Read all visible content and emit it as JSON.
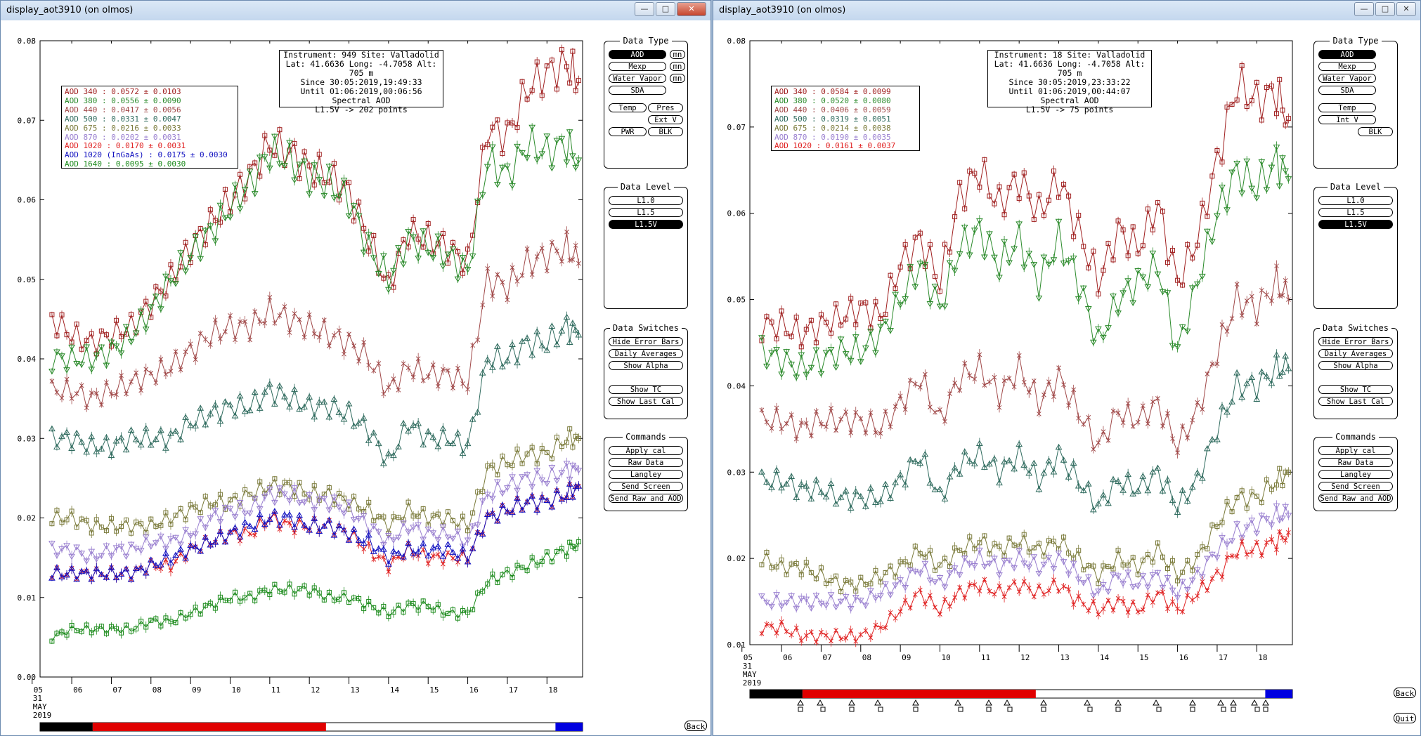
{
  "windows": [
    {
      "id": "left",
      "title": "display_aot3910 (on olmos)",
      "info_lines": [
        "Instrument: 949 Site: Valladolid",
        "Lat: 41.6636 Long: -4.7058 Alt: 705 m",
        "Since 30:05:2019,19:49:33",
        "Until 01:06:2019,00:06:56",
        "Spectral AOD",
        "L1.5V -> 202 points"
      ],
      "legend": [
        {
          "label": "AOD 340  : 0.0572 ± 0.0103",
          "color": "#a02020"
        },
        {
          "label": "AOD 380  : 0.0556 ± 0.0090",
          "color": "#2a8a2a"
        },
        {
          "label": "AOD 440  : 0.0417 ± 0.0056",
          "color": "#a04848"
        },
        {
          "label": "AOD 500  : 0.0331 ± 0.0047",
          "color": "#2f6b5e"
        },
        {
          "label": "AOD 675  : 0.0216 ± 0.0033",
          "color": "#7a7a3a"
        },
        {
          "label": "AOD 870  : 0.0202 ± 0.0031",
          "color": "#9a80d0"
        },
        {
          "label": "AOD 1020  : 0.0170 ± 0.0031",
          "color": "#e02020"
        },
        {
          "label": "AOD 1020 (InGaAs)  : 0.0175 ± 0.0030",
          "color": "#1010c0"
        },
        {
          "label": "AOD 1640  : 0.0095 ± 0.0030",
          "color": "#1a8a1a"
        }
      ]
    },
    {
      "id": "right",
      "title": "display_aot3910 (on olmos)",
      "info_lines": [
        "Instrument: 18 Site: Valladolid",
        "Lat: 41.6636 Long: -4.7058 Alt: 705 m",
        "Since 30:05:2019,23:33:22",
        "Until 01:06:2019,00:44:07",
        "Spectral AOD",
        "L1.5V -> 75 points"
      ],
      "legend": [
        {
          "label": "AOD 340  : 0.0584 ± 0.0099",
          "color": "#a02020"
        },
        {
          "label": "AOD 380  : 0.0520 ± 0.0080",
          "color": "#2a8a2a"
        },
        {
          "label": "AOD 440  : 0.0406 ± 0.0059",
          "color": "#a04848"
        },
        {
          "label": "AOD 500  : 0.0319 ± 0.0051",
          "color": "#2f6b5e"
        },
        {
          "label": "AOD 675  : 0.0214 ± 0.0038",
          "color": "#7a7a3a"
        },
        {
          "label": "AOD 870  : 0.0190 ± 0.0035",
          "color": "#9a80d0"
        },
        {
          "label": "AOD 1020  : 0.0161 ± 0.0037",
          "color": "#e02020"
        }
      ]
    }
  ],
  "panels": {
    "data_type": {
      "title": "Data Type",
      "aod": "AOD",
      "mexp": "Mexp",
      "water_vapor": "Water Vapor",
      "sda": "SDA",
      "temp": "Temp",
      "pres": "Pres",
      "ext_v": "Ext V",
      "pwr": "PWR",
      "blk": "BLK",
      "mn": "mn",
      "int_v": "Int V"
    },
    "data_level": {
      "title": "Data Level",
      "l10": "L1.0",
      "l15": "L1.5",
      "l15v": "L1.5V"
    },
    "data_switches": {
      "title": "Data Switches",
      "hide_error_bars": "Hide Error Bars",
      "daily_averages": "Daily Averages",
      "show_alpha": "Show Alpha",
      "show_tc": "Show TC",
      "show_last_cal": "Show Last Cal"
    },
    "commands": {
      "title": "Commands",
      "apply_cal": "Apply cal",
      "raw_data": "Raw Data",
      "langley": "Langley",
      "send_screen": "Send Screen",
      "send_raw_and_aod": "Send Raw and AOD"
    },
    "back": "Back",
    "quit": "Quit"
  },
  "chart_data": [
    {
      "type": "line",
      "ylim": [
        0,
        0.08
      ],
      "yticks": [
        "0.00",
        "0.01",
        "0.02",
        "0.03",
        "0.04",
        "0.05",
        "0.06",
        "0.07",
        "0.08"
      ],
      "xlim": [
        5.2,
        18.9
      ],
      "xticks": [
        "05",
        "06",
        "07",
        "08",
        "09",
        "10",
        "11",
        "12",
        "13",
        "14",
        "15",
        "16",
        "17",
        "18"
      ],
      "xsub": [
        "31",
        "MAY",
        "2019"
      ],
      "x": [
        5.5,
        6.0,
        6.5,
        7.0,
        7.5,
        8.0,
        8.5,
        9.0,
        9.5,
        10.0,
        10.5,
        11.0,
        11.5,
        12.0,
        12.5,
        13.0,
        13.5,
        14.0,
        14.5,
        15.0,
        15.5,
        16.0,
        16.5,
        17.0,
        17.5,
        18.0,
        18.5,
        18.8
      ],
      "series": [
        {
          "name": "AOD 340",
          "marker": "square",
          "color": "#a02020",
          "values": [
            0.045,
            0.043,
            0.042,
            0.043,
            0.044,
            0.047,
            0.05,
            0.054,
            0.057,
            0.06,
            0.063,
            0.067,
            0.066,
            0.064,
            0.063,
            0.061,
            0.055,
            0.049,
            0.056,
            0.055,
            0.054,
            0.052,
            0.069,
            0.068,
            0.074,
            0.076,
            0.077,
            0.075
          ]
        },
        {
          "name": "AOD 380",
          "marker": "triangle-down",
          "color": "#2a8a2a",
          "values": [
            0.04,
            0.04,
            0.04,
            0.041,
            0.043,
            0.046,
            0.05,
            0.053,
            0.056,
            0.059,
            0.062,
            0.066,
            0.065,
            0.063,
            0.062,
            0.06,
            0.054,
            0.05,
            0.055,
            0.054,
            0.053,
            0.051,
            0.065,
            0.063,
            0.067,
            0.066,
            0.067,
            0.065
          ]
        },
        {
          "name": "AOD 440",
          "marker": "x",
          "color": "#a04848",
          "values": [
            0.036,
            0.036,
            0.035,
            0.036,
            0.037,
            0.038,
            0.039,
            0.041,
            0.043,
            0.044,
            0.044,
            0.046,
            0.045,
            0.044,
            0.043,
            0.042,
            0.04,
            0.036,
            0.039,
            0.038,
            0.038,
            0.037,
            0.05,
            0.049,
            0.052,
            0.053,
            0.054,
            0.052
          ]
        },
        {
          "name": "AOD 500",
          "marker": "triangle",
          "color": "#2f6b5e",
          "values": [
            0.03,
            0.03,
            0.029,
            0.029,
            0.03,
            0.03,
            0.03,
            0.032,
            0.033,
            0.034,
            0.034,
            0.036,
            0.035,
            0.034,
            0.034,
            0.033,
            0.031,
            0.027,
            0.032,
            0.03,
            0.03,
            0.029,
            0.04,
            0.04,
            0.042,
            0.042,
            0.044,
            0.043
          ]
        },
        {
          "name": "AOD 675",
          "marker": "square",
          "color": "#7a7a3a",
          "values": [
            0.02,
            0.02,
            0.019,
            0.019,
            0.019,
            0.019,
            0.02,
            0.021,
            0.022,
            0.022,
            0.023,
            0.024,
            0.024,
            0.023,
            0.023,
            0.022,
            0.021,
            0.019,
            0.021,
            0.02,
            0.02,
            0.019,
            0.026,
            0.027,
            0.028,
            0.028,
            0.03,
            0.03
          ]
        },
        {
          "name": "AOD 870",
          "marker": "triangle-down",
          "color": "#9a80d0",
          "values": [
            0.016,
            0.016,
            0.015,
            0.016,
            0.016,
            0.017,
            0.017,
            0.018,
            0.02,
            0.021,
            0.021,
            0.023,
            0.023,
            0.022,
            0.022,
            0.021,
            0.019,
            0.017,
            0.019,
            0.018,
            0.018,
            0.017,
            0.023,
            0.024,
            0.025,
            0.025,
            0.026,
            0.026
          ]
        },
        {
          "name": "AOD 1020",
          "marker": "x",
          "color": "#e02020",
          "values": [
            0.013,
            0.013,
            0.013,
            0.013,
            0.013,
            0.014,
            0.014,
            0.016,
            0.017,
            0.018,
            0.018,
            0.02,
            0.019,
            0.019,
            0.019,
            0.018,
            0.016,
            0.014,
            0.016,
            0.015,
            0.015,
            0.015,
            0.02,
            0.021,
            0.022,
            0.022,
            0.023,
            0.024
          ]
        },
        {
          "name": "AOD 1020 (InGaAs)",
          "marker": "triangle",
          "color": "#1010c0",
          "values": [
            0.013,
            0.013,
            0.013,
            0.013,
            0.013,
            0.014,
            0.015,
            0.016,
            0.017,
            0.018,
            0.019,
            0.02,
            0.02,
            0.019,
            0.019,
            0.018,
            0.017,
            0.015,
            0.016,
            0.016,
            0.016,
            0.015,
            0.02,
            0.021,
            0.022,
            0.022,
            0.023,
            0.024
          ]
        },
        {
          "name": "AOD 1640",
          "marker": "square",
          "color": "#1a8a1a",
          "values": [
            0.005,
            0.006,
            0.006,
            0.006,
            0.006,
            0.007,
            0.007,
            0.008,
            0.009,
            0.01,
            0.01,
            0.011,
            0.011,
            0.011,
            0.01,
            0.01,
            0.009,
            0.008,
            0.009,
            0.009,
            0.008,
            0.008,
            0.012,
            0.013,
            0.014,
            0.015,
            0.016,
            0.017
          ]
        }
      ]
    },
    {
      "type": "line",
      "ylim": [
        0.01,
        0.08
      ],
      "yticks": [
        "0.01",
        "0.02",
        "0.03",
        "0.04",
        "0.05",
        "0.06",
        "0.07",
        "0.08"
      ],
      "xlim": [
        5.2,
        18.9
      ],
      "xticks": [
        "05",
        "06",
        "07",
        "08",
        "09",
        "10",
        "11",
        "12",
        "13",
        "14",
        "15",
        "16",
        "17",
        "18"
      ],
      "xsub": [
        "31",
        "MAY",
        "2019"
      ],
      "x": [
        5.5,
        6.0,
        6.5,
        7.0,
        7.5,
        8.0,
        8.5,
        9.0,
        9.5,
        10.0,
        10.5,
        11.0,
        11.5,
        12.0,
        12.5,
        13.0,
        13.5,
        14.0,
        14.5,
        15.0,
        15.5,
        16.0,
        16.5,
        17.0,
        17.5,
        18.0,
        18.5,
        18.8
      ],
      "series": [
        {
          "name": "AOD 340",
          "marker": "square",
          "color": "#a02020",
          "values": [
            0.047,
            0.047,
            0.046,
            0.047,
            0.048,
            0.049,
            0.048,
            0.054,
            0.057,
            0.052,
            0.062,
            0.065,
            0.061,
            0.064,
            0.06,
            0.064,
            0.058,
            0.052,
            0.058,
            0.056,
            0.061,
            0.052,
            0.057,
            0.066,
            0.075,
            0.073,
            0.074,
            0.071
          ]
        },
        {
          "name": "AOD 380",
          "marker": "triangle-down",
          "color": "#2a8a2a",
          "values": [
            0.044,
            0.043,
            0.042,
            0.043,
            0.044,
            0.044,
            0.046,
            0.05,
            0.054,
            0.049,
            0.056,
            0.058,
            0.054,
            0.057,
            0.052,
            0.057,
            0.052,
            0.045,
            0.05,
            0.052,
            0.054,
            0.044,
            0.052,
            0.06,
            0.065,
            0.063,
            0.066,
            0.064
          ]
        },
        {
          "name": "AOD 440",
          "marker": "x",
          "color": "#a04848",
          "values": [
            0.036,
            0.036,
            0.035,
            0.036,
            0.036,
            0.036,
            0.035,
            0.038,
            0.041,
            0.036,
            0.041,
            0.042,
            0.039,
            0.042,
            0.038,
            0.041,
            0.037,
            0.033,
            0.037,
            0.036,
            0.038,
            0.033,
            0.037,
            0.044,
            0.05,
            0.049,
            0.052,
            0.05
          ]
        },
        {
          "name": "AOD 500",
          "marker": "triangle",
          "color": "#2f6b5e",
          "values": [
            0.029,
            0.029,
            0.028,
            0.028,
            0.027,
            0.027,
            0.027,
            0.029,
            0.032,
            0.027,
            0.031,
            0.032,
            0.03,
            0.032,
            0.029,
            0.032,
            0.029,
            0.026,
            0.029,
            0.028,
            0.03,
            0.026,
            0.029,
            0.035,
            0.04,
            0.04,
            0.042,
            0.042
          ]
        },
        {
          "name": "AOD 675",
          "marker": "square",
          "color": "#7a7a3a",
          "values": [
            0.02,
            0.019,
            0.019,
            0.018,
            0.017,
            0.017,
            0.018,
            0.019,
            0.021,
            0.019,
            0.021,
            0.022,
            0.021,
            0.022,
            0.021,
            0.022,
            0.02,
            0.018,
            0.02,
            0.019,
            0.021,
            0.018,
            0.02,
            0.024,
            0.027,
            0.027,
            0.029,
            0.03
          ]
        },
        {
          "name": "AOD 870",
          "marker": "triangle-down",
          "color": "#9a80d0",
          "values": [
            0.015,
            0.015,
            0.015,
            0.015,
            0.015,
            0.015,
            0.016,
            0.017,
            0.019,
            0.017,
            0.019,
            0.02,
            0.019,
            0.02,
            0.019,
            0.02,
            0.018,
            0.016,
            0.018,
            0.017,
            0.018,
            0.016,
            0.018,
            0.021,
            0.023,
            0.024,
            0.025,
            0.025
          ]
        },
        {
          "name": "AOD 1020",
          "marker": "x",
          "color": "#e02020",
          "values": [
            0.012,
            0.012,
            0.011,
            0.011,
            0.011,
            0.011,
            0.012,
            0.014,
            0.016,
            0.014,
            0.016,
            0.017,
            0.016,
            0.017,
            0.016,
            0.017,
            0.015,
            0.014,
            0.015,
            0.014,
            0.016,
            0.014,
            0.016,
            0.018,
            0.021,
            0.021,
            0.022,
            0.023
          ]
        }
      ]
    }
  ]
}
